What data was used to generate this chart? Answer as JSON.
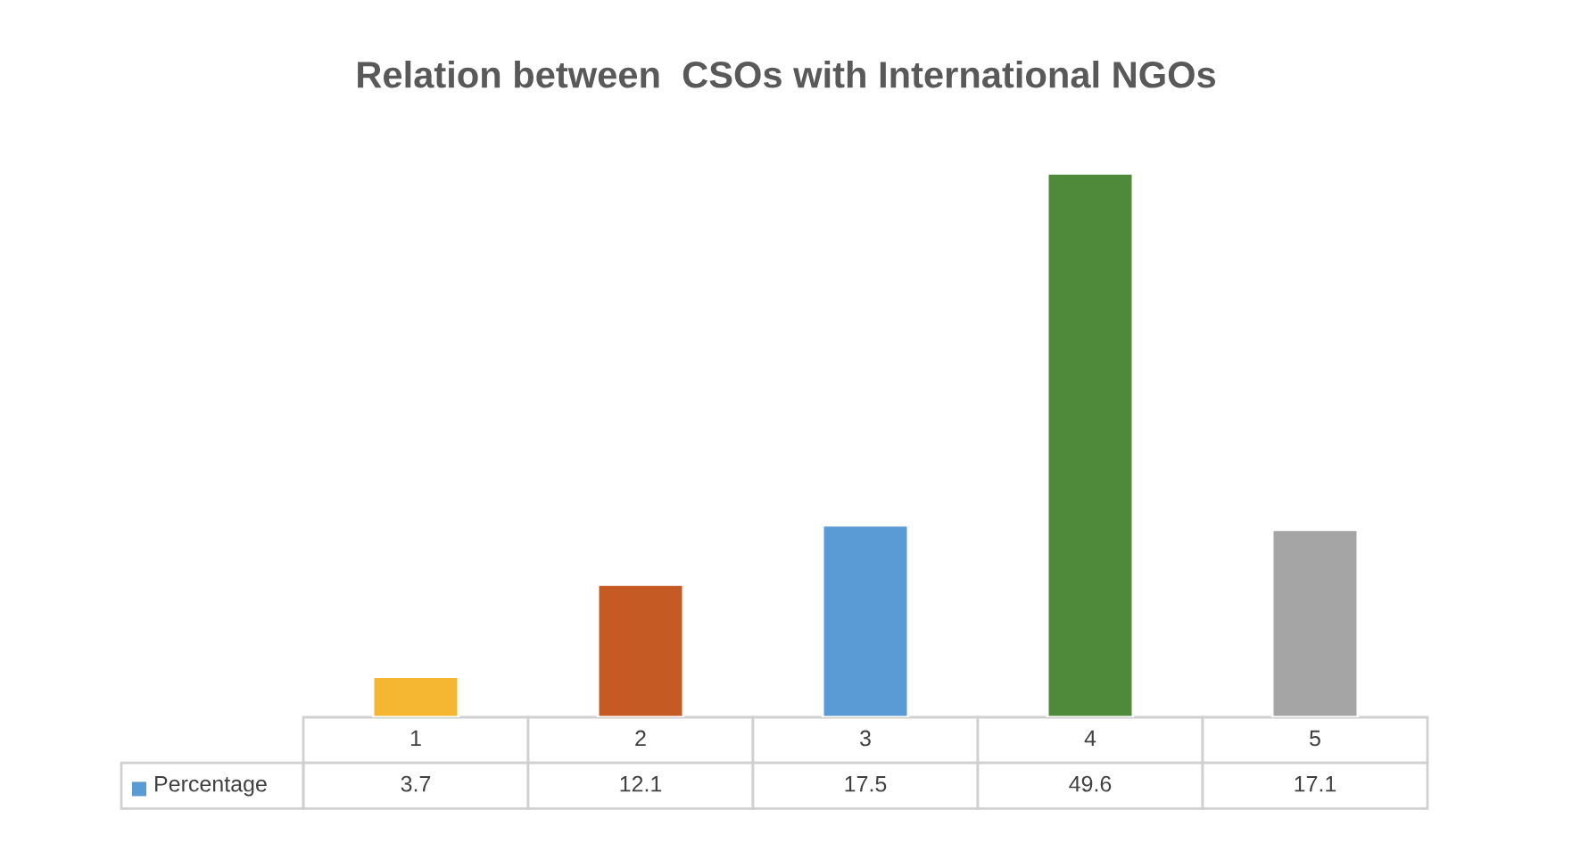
{
  "chart_data": {
    "type": "bar",
    "title": "Relation between  CSOs with International NGOs",
    "categories": [
      "1",
      "2",
      "3",
      "4",
      "5"
    ],
    "series": [
      {
        "name": "Percentage",
        "color": "#5b9bd5",
        "colors": [
          "#f5b731",
          "#c55a24",
          "#5b9bd5",
          "#4e8a3a",
          "#a5a5a5"
        ],
        "values": [
          3.7,
          12.1,
          17.5,
          49.6,
          17.1
        ]
      }
    ],
    "data_labels": true
  }
}
